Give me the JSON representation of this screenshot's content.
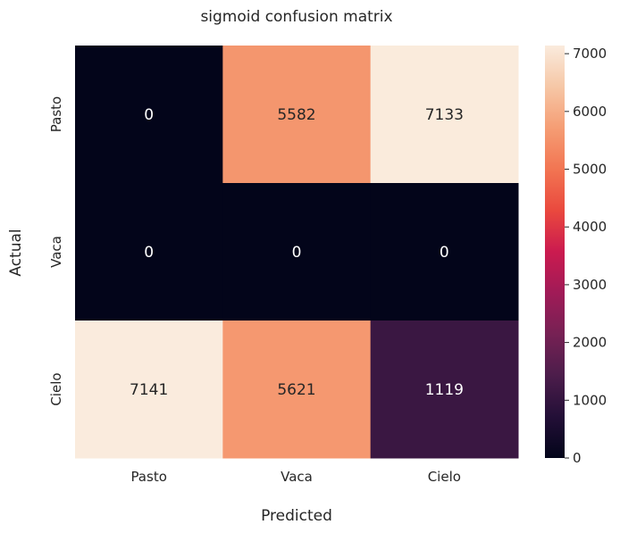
{
  "chart_data": {
    "type": "heatmap",
    "title": "sigmoid confusion matrix",
    "xlabel": "Predicted",
    "ylabel": "Actual",
    "x_categories": [
      "Pasto",
      "Vaca",
      "Cielo"
    ],
    "y_categories": [
      "Pasto",
      "Vaca",
      "Cielo"
    ],
    "values": [
      [
        0,
        5582,
        7133
      ],
      [
        0,
        0,
        0
      ],
      [
        7141,
        5621,
        1119
      ]
    ],
    "colorbar": {
      "range": [
        0,
        7141
      ],
      "ticks": [
        0,
        1000,
        2000,
        3000,
        4000,
        5000,
        6000,
        7000
      ],
      "colormap": "rocket"
    }
  }
}
